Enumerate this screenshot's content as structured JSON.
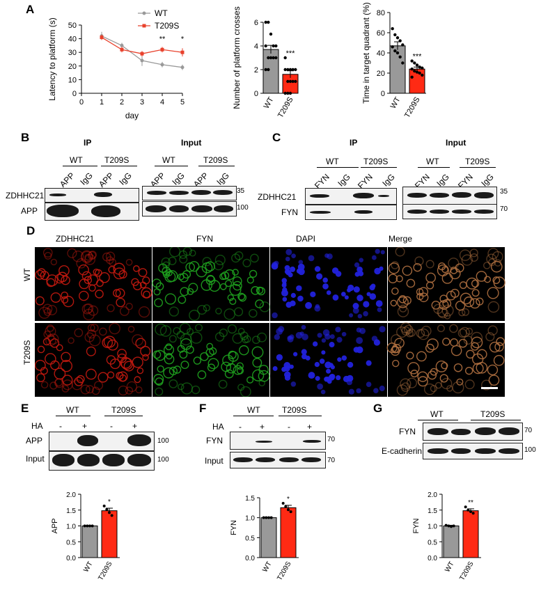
{
  "panels": {
    "A": "A",
    "B": "B",
    "C": "C",
    "D": "D",
    "E": "E",
    "F": "F",
    "G": "G"
  },
  "chart_data": [
    {
      "type": "line",
      "id": "latency",
      "ylabel": "Latency to platform (s)",
      "xlabel": "day",
      "xlim": [
        0,
        5
      ],
      "ylim": [
        0,
        50
      ],
      "x_ticks": [
        "0",
        "1",
        "2",
        "3",
        "4",
        "5"
      ],
      "y_ticks": [
        "0",
        "10",
        "20",
        "30",
        "40",
        "50"
      ],
      "x": [
        1,
        2,
        3,
        4,
        5
      ],
      "series": [
        {
          "name": "WT",
          "color": "#999999",
          "values": [
            42,
            35,
            24,
            21,
            19
          ],
          "err": [
            3,
            2,
            4,
            2,
            2
          ]
        },
        {
          "name": "T209S",
          "color": "#e8412c",
          "values": [
            41,
            32,
            29,
            32,
            30
          ],
          "err": [
            2,
            2,
            2,
            2,
            3
          ]
        }
      ],
      "annotations": [
        {
          "x": 4,
          "text": "**"
        },
        {
          "x": 5,
          "text": "*"
        }
      ],
      "legend_position": "top-right"
    },
    {
      "type": "bar",
      "id": "platform_crosses",
      "ylabel": "Number of platform crosses",
      "categories": [
        "WT",
        "T209S"
      ],
      "values": [
        3.7,
        1.6
      ],
      "err": [
        0.35,
        0.3
      ],
      "colors": [
        "#999999",
        "#ff2a14"
      ],
      "ylim": [
        0,
        6
      ],
      "y_ticks": [
        "0",
        "2",
        "4",
        "6"
      ],
      "points": [
        [
          6,
          6,
          5,
          4,
          4,
          4,
          3,
          3,
          3,
          3,
          2,
          2
        ],
        [
          3,
          2,
          2,
          2,
          2,
          2,
          1,
          1,
          1,
          1,
          0,
          0,
          0
        ]
      ],
      "annotation": "***"
    },
    {
      "type": "bar",
      "id": "target_quadrant",
      "ylabel": "Time in target quadrant (%)",
      "categories": [
        "WT",
        "T209S"
      ],
      "values": [
        47,
        24
      ],
      "err": [
        4,
        2
      ],
      "colors": [
        "#999999",
        "#ff2a14"
      ],
      "ylim": [
        0,
        80
      ],
      "y_ticks": [
        "0",
        "20",
        "40",
        "60",
        "80"
      ],
      "points": [
        [
          64,
          58,
          55,
          52,
          48,
          46,
          42,
          40,
          36,
          30
        ],
        [
          32,
          30,
          28,
          26,
          25,
          24,
          22,
          21,
          20,
          18,
          16
        ]
      ],
      "annotation": "***"
    },
    {
      "type": "bar",
      "id": "E_quant",
      "ylabel": "APP",
      "categories": [
        "WT",
        "T209S"
      ],
      "values": [
        1.0,
        1.48
      ],
      "err": [
        0,
        0.08
      ],
      "colors": [
        "#999999",
        "#ff2a14"
      ],
      "ylim": [
        0,
        2.0
      ],
      "y_ticks": [
        "0.0",
        "0.5",
        "1.0",
        "1.5",
        "2.0"
      ],
      "points": [
        [
          1.0,
          1.0,
          1.0,
          1.0
        ],
        [
          1.63,
          1.52,
          1.42,
          1.33
        ]
      ],
      "annotation": "*"
    },
    {
      "type": "bar",
      "id": "F_quant",
      "ylabel": "FYN",
      "categories": [
        "WT",
        "T209S"
      ],
      "values": [
        1.0,
        1.25
      ],
      "err": [
        0,
        0.06
      ],
      "colors": [
        "#999999",
        "#ff2a14"
      ],
      "ylim": [
        0,
        1.5
      ],
      "y_ticks": [
        "0.0",
        "0.5",
        "1.0",
        "1.5"
      ],
      "points": [
        [
          1.0,
          1.0,
          1.0,
          1.0
        ],
        [
          1.36,
          1.28,
          1.2,
          1.15
        ]
      ],
      "annotation": "*"
    },
    {
      "type": "bar",
      "id": "G_quant",
      "ylabel": "FYN",
      "categories": [
        "WT",
        "T209S"
      ],
      "values": [
        1.0,
        1.48
      ],
      "err": [
        0.02,
        0.06
      ],
      "colors": [
        "#999999",
        "#ff2a14"
      ],
      "ylim": [
        0,
        2.0
      ],
      "y_ticks": [
        "0.0",
        "0.5",
        "1.0",
        "1.5",
        "2.0"
      ],
      "points": [
        [
          1.02,
          1.0,
          0.98,
          1.0
        ],
        [
          1.6,
          1.5,
          1.45,
          1.4
        ]
      ],
      "annotation": "**"
    }
  ],
  "blots": {
    "B": {
      "ip_title": "IP",
      "input_title": "Input",
      "group_wt": "WT",
      "group_t209s": "T209S",
      "lanes": [
        "APP",
        "IgG",
        "APP",
        "IgG"
      ],
      "rows": [
        "ZDHHC21",
        "APP"
      ],
      "markers": [
        "35",
        "100"
      ]
    },
    "C": {
      "ip_title": "IP",
      "input_title": "Input",
      "group_wt": "WT",
      "group_t209s": "T209S",
      "lanes": [
        "FYN",
        "IgG",
        "FYN",
        "IgG"
      ],
      "rows": [
        "ZDHHC21",
        "FYN"
      ],
      "markers": [
        "35",
        "70"
      ]
    },
    "E": {
      "group_wt": "WT",
      "group_t209s": "T209S",
      "ha_label": "HA",
      "ha_signs": [
        "-",
        "+",
        "-",
        "+"
      ],
      "rows": [
        "APP",
        "Input"
      ],
      "markers": [
        "100",
        "100"
      ]
    },
    "F": {
      "group_wt": "WT",
      "group_t209s": "T209S",
      "ha_label": "HA",
      "ha_signs": [
        "-",
        "+",
        "-",
        "+"
      ],
      "rows": [
        "FYN",
        "Input"
      ],
      "markers": [
        "70",
        "70"
      ]
    },
    "G": {
      "group_wt": "WT",
      "group_t209s": "T209S",
      "rows": [
        "FYN",
        "E-cadherin"
      ],
      "markers": [
        "70",
        "100"
      ]
    }
  },
  "microscopy": {
    "columns": [
      "ZDHHC21",
      "FYN",
      "DAPI",
      "Merge"
    ],
    "rows": [
      "WT",
      "T209S"
    ],
    "colors": {
      "ZDHHC21": "#c41a10",
      "FYN": "#1fa31f",
      "DAPI": "#2222dd",
      "Merge": "#b07040"
    }
  }
}
